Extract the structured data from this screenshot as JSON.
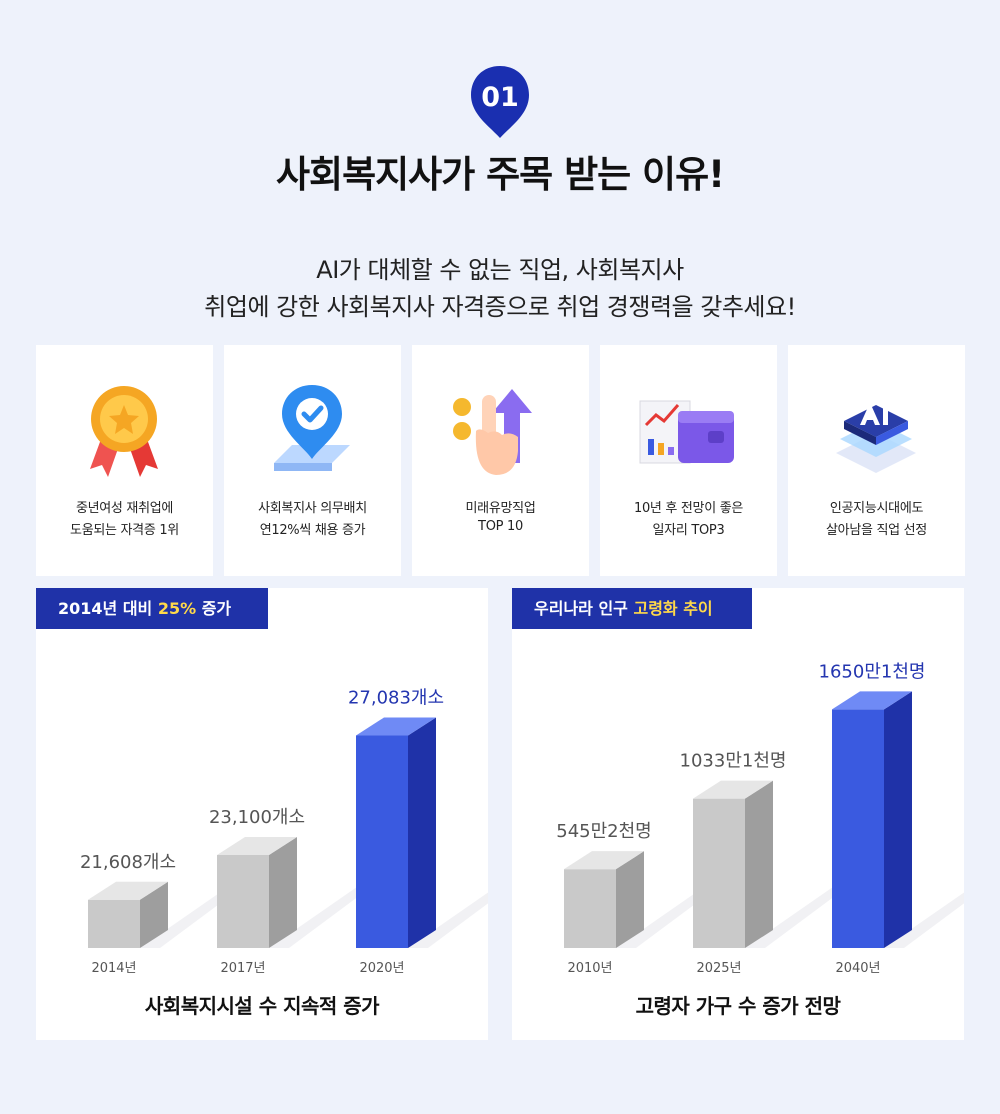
{
  "badge": {
    "number": "01"
  },
  "title": "사회복지사가 주목 받는 이유!",
  "subtitle": {
    "line1": "AI가 대체할 수 없는 직업, 사회복지사",
    "line2": "취업에 강한 사회복지사 자격증으로 취업 경쟁력을 갖추세요!"
  },
  "cards": [
    {
      "icon": "medal-icon",
      "line1": "중년여성 재취업에",
      "line2": "도움되는 자격증 1위"
    },
    {
      "icon": "location-pin-icon",
      "line1": "사회복지사 의무배치",
      "line2": "연12%씩 채용 증가"
    },
    {
      "icon": "pointing-hand-up-arrow-icon",
      "line1": "미래유망직업",
      "line2": "TOP 10"
    },
    {
      "icon": "chart-wallet-icon",
      "line1": "10년 후 전망이 좋은",
      "line2": "일자리 TOP3"
    },
    {
      "icon": "ai-chip-icon",
      "line1": "인공지능시대에도",
      "line2": "살아남을 직업 선정"
    }
  ],
  "colors": {
    "accent": "#1f32a8",
    "bar_highlight": "#3a5ae0",
    "bar_gray": "#c8c8c8",
    "tag_highlight": "#ffd94a"
  },
  "chart_data": [
    {
      "type": "bar",
      "tag": {
        "prefix": "2014년 대비 ",
        "highlight": "25%",
        "suffix": " 증가"
      },
      "title": "사회복지시설 수 지속적 증가",
      "categories": [
        "2014년",
        "2017년",
        "2020년"
      ],
      "values": [
        21608,
        23100,
        27083
      ],
      "value_labels": [
        "21,608개소",
        "23,100개소",
        "27,083개소"
      ],
      "ylim": [
        20000,
        28000
      ]
    },
    {
      "type": "bar",
      "tag": {
        "prefix": "우리나라 인구 ",
        "highlight": "고령화 추이",
        "suffix": ""
      },
      "title": "고령자 가구 수 증가 전망",
      "categories": [
        "2010년",
        "2025년",
        "2040년"
      ],
      "values": [
        5452000,
        10331000,
        16501000
      ],
      "value_labels": [
        "545만2천명",
        "1033만1천명",
        "1650만1천명"
      ],
      "ylim": [
        0,
        16600000
      ]
    }
  ]
}
